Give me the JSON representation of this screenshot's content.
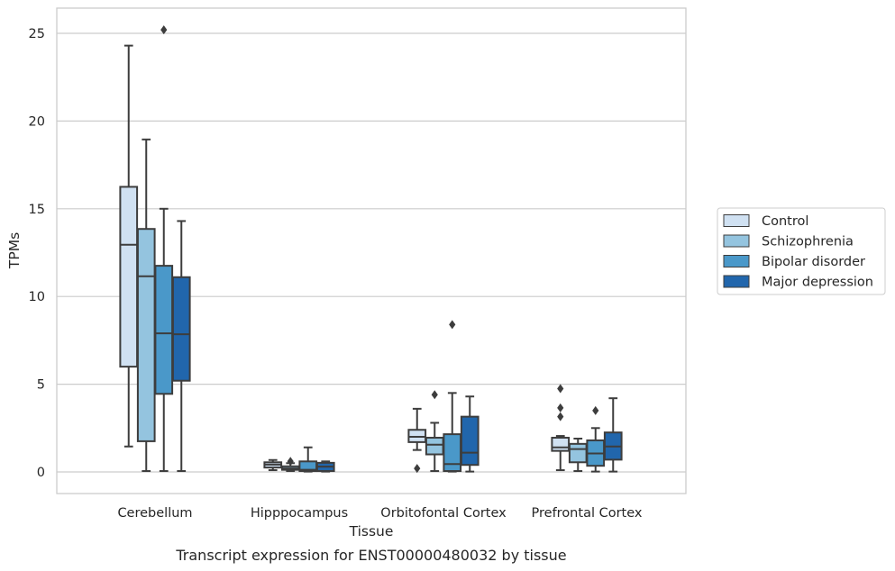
{
  "chart_data": {
    "type": "box",
    "caption": "Transcript expression for ENST00000480032 by tissue",
    "xlabel": "Tissue",
    "ylabel": "TPMs",
    "ylim": [
      -1.2,
      26.4
    ],
    "yticks": [
      0,
      5,
      10,
      15,
      20,
      25
    ],
    "grid": "horizontal",
    "legend_position": "right",
    "categories": [
      "Cerebellum",
      "Hipppocampus",
      "Orbitofontal Cortex",
      "Prefrontal Cortex"
    ],
    "series": [
      {
        "name": "Control",
        "color": "#d0e1f2",
        "boxes": [
          {
            "whislo": 1.45,
            "q1": 6.0,
            "med": 12.95,
            "q3": 16.25,
            "whishi": 24.3,
            "fliers": []
          },
          {
            "whislo": 0.1,
            "q1": 0.25,
            "med": 0.42,
            "q3": 0.55,
            "whishi": 0.68,
            "fliers": []
          },
          {
            "whislo": 1.25,
            "q1": 1.7,
            "med": 2.0,
            "q3": 2.4,
            "whishi": 3.6,
            "fliers": [
              0.2
            ]
          },
          {
            "whislo": 0.1,
            "q1": 1.2,
            "med": 1.4,
            "q3": 1.95,
            "whishi": 2.05,
            "fliers": [
              3.15,
              3.65,
              4.75
            ]
          }
        ]
      },
      {
        "name": "Schizophrenia",
        "color": "#94c4df",
        "boxes": [
          {
            "whislo": 0.05,
            "q1": 1.75,
            "med": 11.15,
            "q3": 13.85,
            "whishi": 18.95,
            "fliers": []
          },
          {
            "whislo": 0.05,
            "q1": 0.12,
            "med": 0.2,
            "q3": 0.32,
            "whishi": 0.5,
            "fliers": [
              0.6
            ]
          },
          {
            "whislo": 0.05,
            "q1": 1.0,
            "med": 1.55,
            "q3": 1.95,
            "whishi": 2.8,
            "fliers": [
              4.4
            ]
          },
          {
            "whislo": 0.05,
            "q1": 0.55,
            "med": 1.3,
            "q3": 1.6,
            "whishi": 1.9,
            "fliers": []
          }
        ]
      },
      {
        "name": "Bipolar disorder",
        "color": "#4a98c9",
        "boxes": [
          {
            "whislo": 0.05,
            "q1": 4.45,
            "med": 7.9,
            "q3": 11.75,
            "whishi": 15.0,
            "fliers": [
              25.2
            ]
          },
          {
            "whislo": 0.02,
            "q1": 0.05,
            "med": 0.12,
            "q3": 0.6,
            "whishi": 1.4,
            "fliers": []
          },
          {
            "whislo": 0.02,
            "q1": 0.05,
            "med": 0.45,
            "q3": 2.15,
            "whishi": 4.5,
            "fliers": [
              8.4
            ]
          },
          {
            "whislo": 0.02,
            "q1": 0.35,
            "med": 1.05,
            "q3": 1.8,
            "whishi": 2.5,
            "fliers": [
              3.5
            ]
          }
        ]
      },
      {
        "name": "Major depression",
        "color": "#2166ac",
        "boxes": [
          {
            "whislo": 0.05,
            "q1": 5.2,
            "med": 7.85,
            "q3": 11.1,
            "whishi": 14.3,
            "fliers": []
          },
          {
            "whislo": 0.02,
            "q1": 0.05,
            "med": 0.3,
            "q3": 0.52,
            "whishi": 0.6,
            "fliers": []
          },
          {
            "whislo": 0.02,
            "q1": 0.4,
            "med": 1.1,
            "q3": 3.15,
            "whishi": 4.3,
            "fliers": []
          },
          {
            "whislo": 0.02,
            "q1": 0.7,
            "med": 1.45,
            "q3": 2.25,
            "whishi": 4.2,
            "fliers": []
          }
        ]
      }
    ]
  }
}
